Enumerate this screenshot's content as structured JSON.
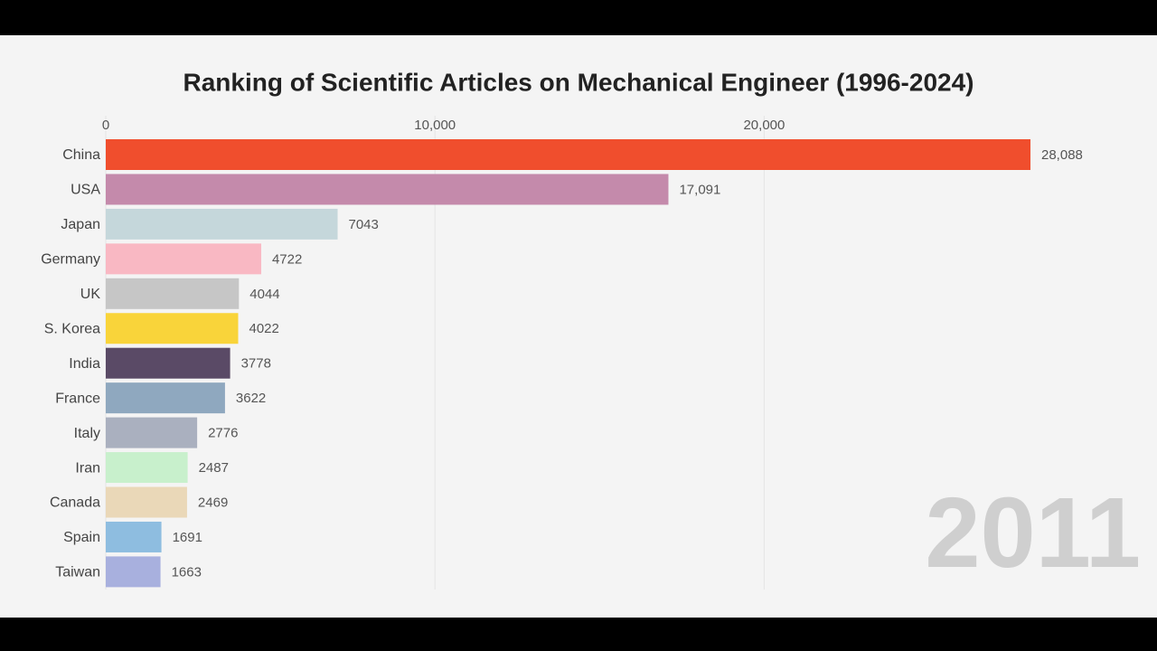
{
  "chart_data": {
    "type": "bar",
    "orientation": "horizontal",
    "title": "Ranking of Scientific Articles on Mechanical Engineer (1996-2024)",
    "categories": [
      "China",
      "USA",
      "Japan",
      "Germany",
      "UK",
      "S. Korea",
      "India",
      "France",
      "Italy",
      "Iran",
      "Canada",
      "Spain",
      "Taiwan"
    ],
    "values": [
      28088,
      17091,
      7043,
      4722,
      4044,
      4022,
      3778,
      3622,
      2776,
      2487,
      2469,
      1691,
      1663
    ],
    "value_labels": [
      "28,088",
      "17,091",
      "7043",
      "4722",
      "4044",
      "4022",
      "3778",
      "3622",
      "2776",
      "2487",
      "2469",
      "1691",
      "1663"
    ],
    "colors": [
      "#f04e2d",
      "#c48aab",
      "#c5d7db",
      "#f9b8c3",
      "#c6c6c6",
      "#f9d43a",
      "#5a4a66",
      "#8fa8bf",
      "#aab0bf",
      "#c8f0cc",
      "#ead8b8",
      "#8ebde0",
      "#a8b0de"
    ],
    "xlim": [
      0,
      28088
    ],
    "xticks": [
      0,
      {
        "value": 10000,
        "label": "10,000"
      },
      {
        "value": 20000,
        "label": "20,000"
      }
    ],
    "grid": true,
    "annotation": "2011"
  }
}
